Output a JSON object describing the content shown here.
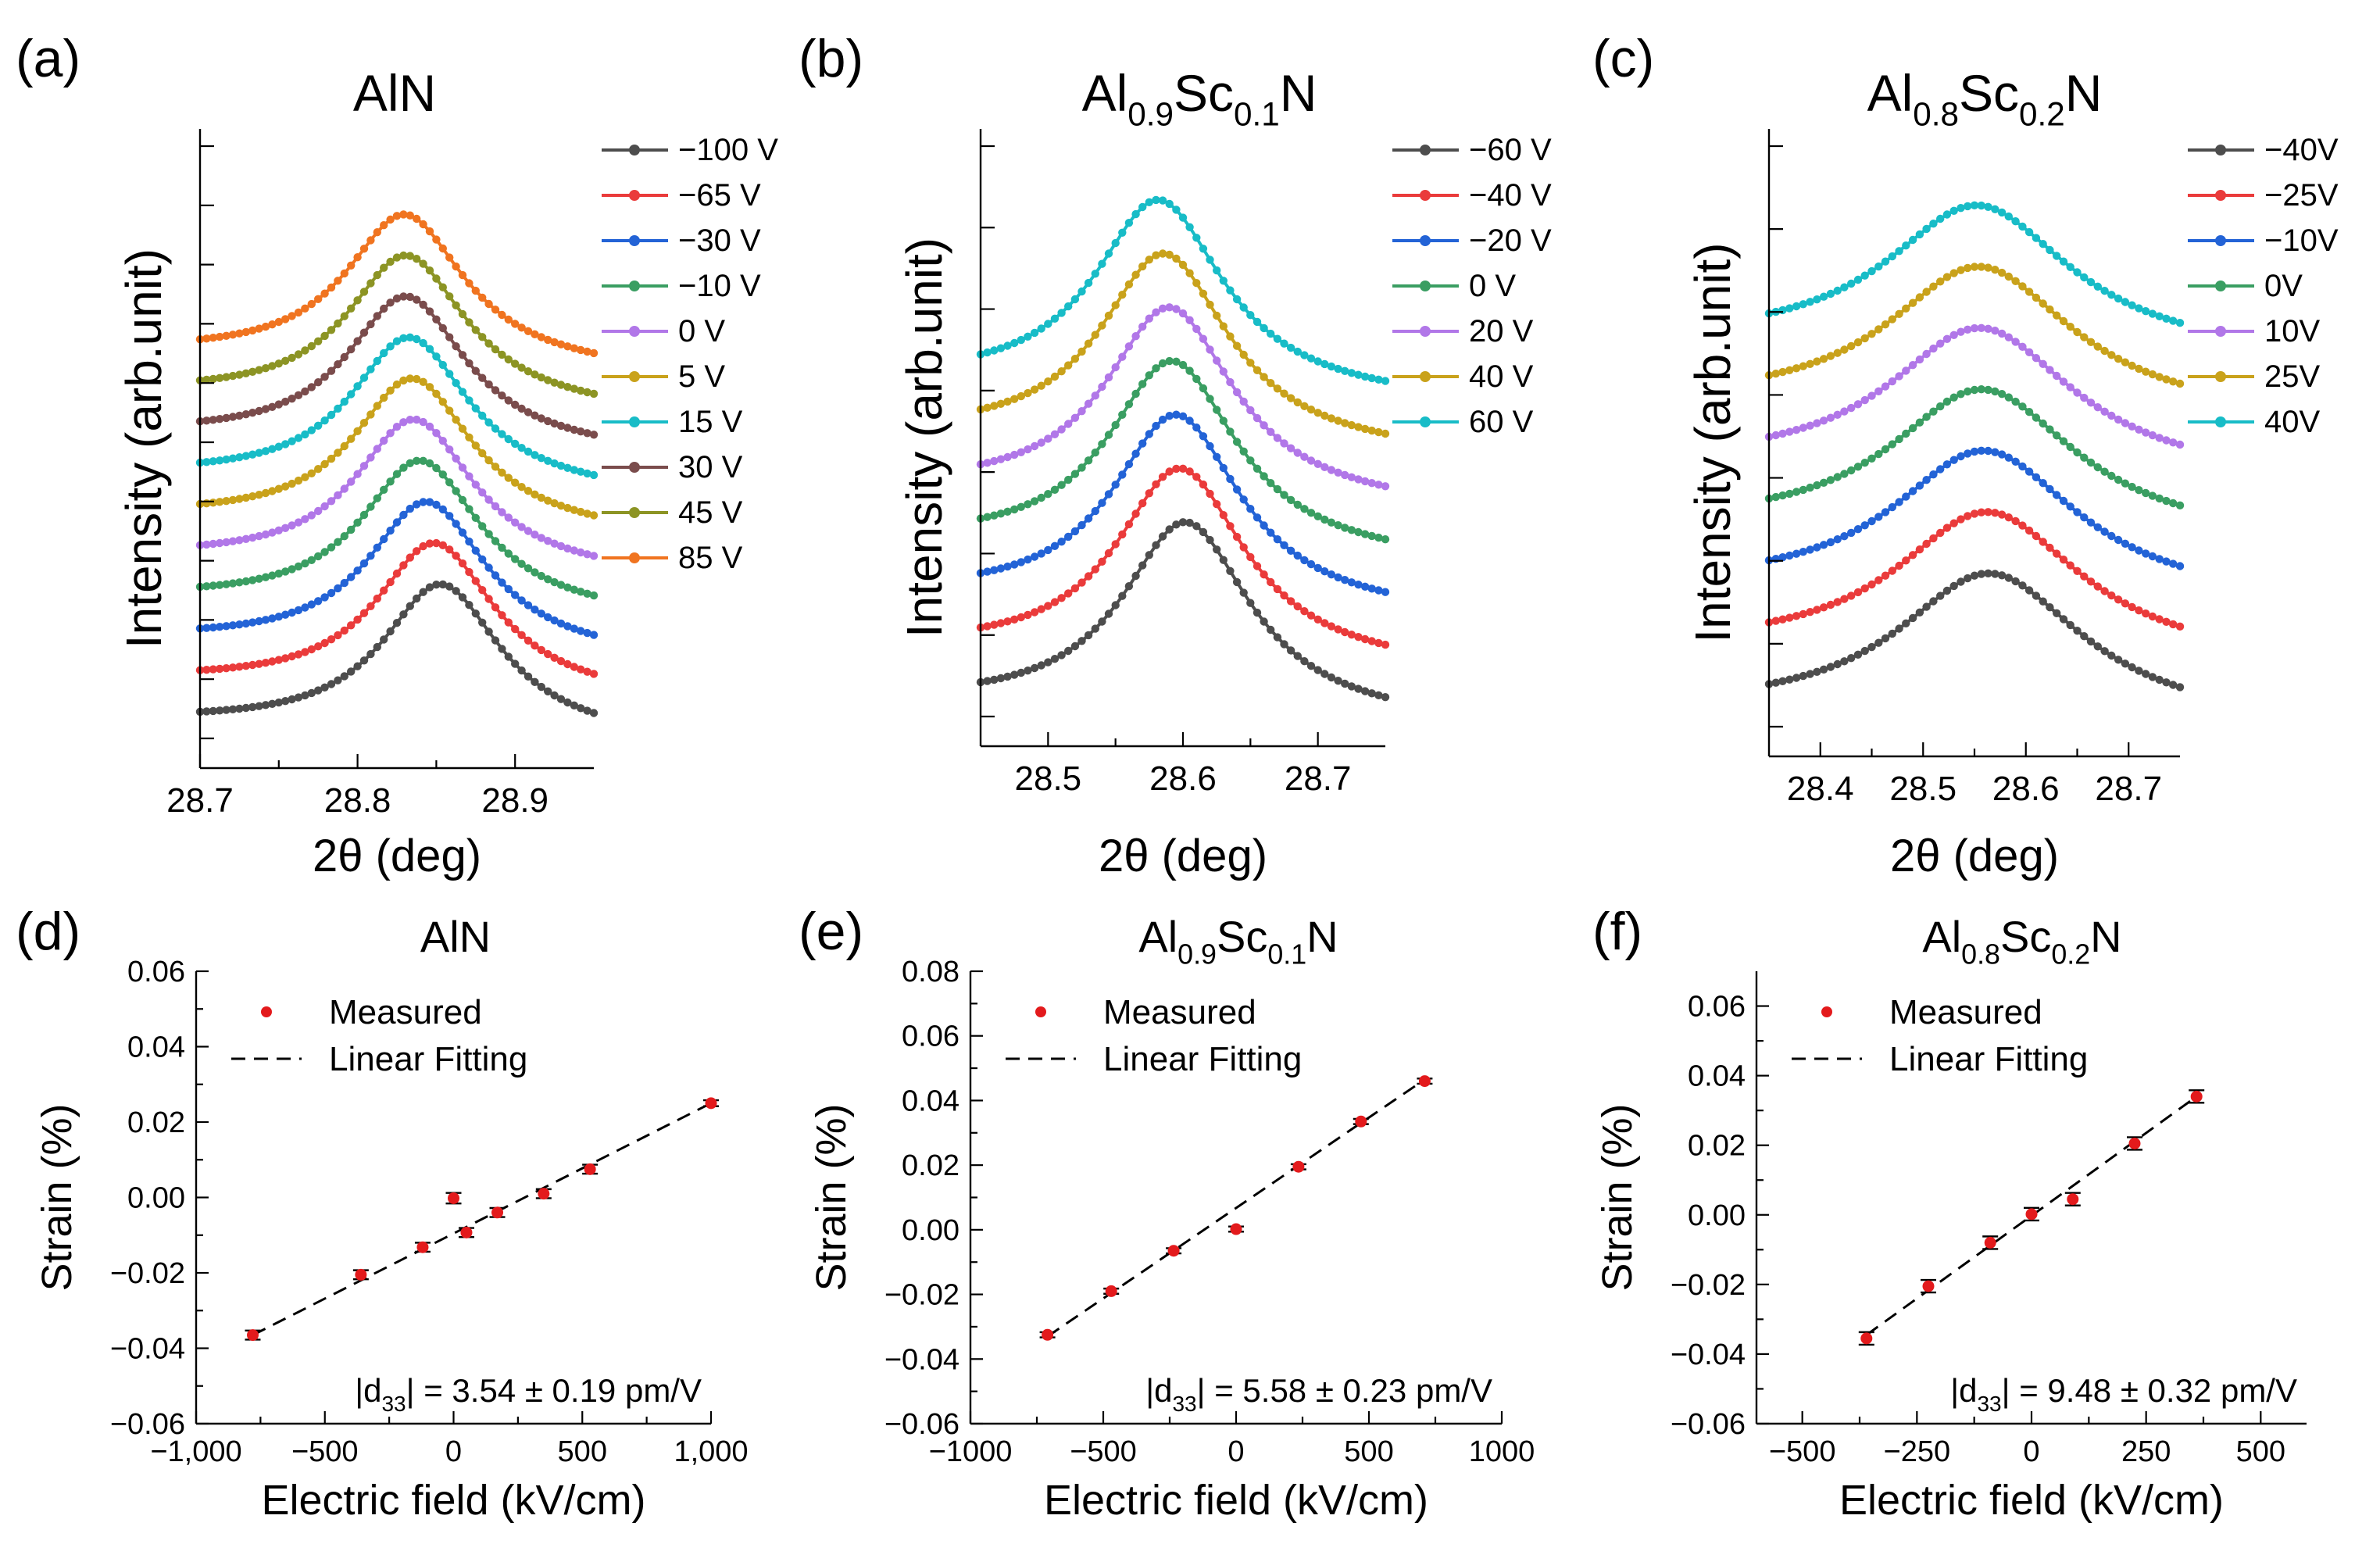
{
  "figure": {
    "xrd_common_ylabel": "Intensity (arb.unit)",
    "strain_common": {
      "xlabel": "Electric field (kV/cm)",
      "ylabel": "Strain (%)",
      "legend_measured": "Measured",
      "legend_fit": "Linear Fitting"
    }
  },
  "colors": {
    "series": [
      "#4d4d4d",
      "#ea3b3b",
      "#2363d6",
      "#3a9e62",
      "#b177e8",
      "#c9a21b",
      "#18bcc7",
      "#7a4c4c",
      "#8c9424",
      "#f07420"
    ],
    "marker": "#e31a1c",
    "errorbar": "#000000"
  },
  "chart_data": [
    {
      "panel": "(a)",
      "type": "line",
      "title": {
        "base": "AlN"
      },
      "xlabel": "2θ (deg)",
      "ylabel": "Intensity (arb.unit)",
      "xlim": [
        28.7,
        28.95
      ],
      "xticks": [
        "28.7",
        "28.8",
        "28.9"
      ],
      "xtick_values": [
        28.7,
        28.8,
        28.9
      ],
      "minor_xticks": [
        28.75,
        28.85
      ],
      "peak_model": {
        "center_shift": [
          28.853,
          28.849,
          28.844,
          28.84,
          28.836,
          28.835,
          28.833,
          28.831,
          28.831,
          28.83
        ],
        "width": 0.046,
        "baseline_offset": [
          0.3,
          0.9,
          1.5,
          2.1,
          2.7,
          3.3,
          3.9,
          4.5,
          5.1,
          5.7
        ],
        "amplitude": 2.2,
        "slope": -0.4
      },
      "series": [
        {
          "name": "−100 V",
          "peak": 28.853
        },
        {
          "name": "−65 V",
          "peak": 28.849
        },
        {
          "name": "−30 V",
          "peak": 28.844
        },
        {
          "name": "−10 V",
          "peak": 28.84
        },
        {
          "name": "0 V",
          "peak": 28.836
        },
        {
          "name": "5 V",
          "peak": 28.835
        },
        {
          "name": "15 V",
          "peak": 28.833
        },
        {
          "name": "30 V",
          "peak": 28.831
        },
        {
          "name": "45 V",
          "peak": 28.831
        },
        {
          "name": "85 V",
          "peak": 28.83
        }
      ]
    },
    {
      "panel": "(b)",
      "type": "line",
      "title": {
        "base": "Al",
        "sub1": "0.9",
        "mid": "Sc",
        "sub2": "0.1",
        "tail": "N"
      },
      "xlabel": "2θ (deg)",
      "ylabel": "Intensity (arb.unit)",
      "xlim": [
        28.45,
        28.75
      ],
      "xticks": [
        "28.5",
        "28.6",
        "28.7"
      ],
      "xtick_values": [
        28.5,
        28.6,
        28.7
      ],
      "minor_xticks": [
        28.55,
        28.65
      ],
      "peak_model": {
        "width": 0.058,
        "baseline_offset": [
          0.3,
          1.3,
          2.3,
          3.3,
          4.3,
          5.3,
          6.3
        ],
        "amplitude": 3.6,
        "slope": -0.5
      },
      "series": [
        {
          "name": "−60 V",
          "peak": 28.602
        },
        {
          "name": "−40 V",
          "peak": 28.598
        },
        {
          "name": "−20 V",
          "peak": 28.595
        },
        {
          "name": "0 V",
          "peak": 28.592
        },
        {
          "name": "20 V",
          "peak": 28.59
        },
        {
          "name": "40 V",
          "peak": 28.586
        },
        {
          "name": "60 V",
          "peak": 28.582
        }
      ]
    },
    {
      "panel": "(c)",
      "type": "line",
      "title": {
        "base": "Al",
        "sub1": "0.8",
        "mid": "Sc",
        "sub2": "0.2",
        "tail": "N"
      },
      "xlabel": "2θ (deg)",
      "ylabel": "Intensity (arb.unit)",
      "xlim": [
        28.35,
        28.75
      ],
      "xticks": [
        "28.4",
        "28.5",
        "28.6",
        "28.7"
      ],
      "xtick_values": [
        28.4,
        28.5,
        28.6,
        28.7
      ],
      "minor_xticks": [
        28.45,
        28.55,
        28.65
      ],
      "peak_model": {
        "width": 0.11,
        "baseline_offset": [
          0.3,
          1.3,
          2.3,
          3.3,
          4.3,
          5.3,
          6.3
        ],
        "amplitude": 2.4,
        "slope": -0.3
      },
      "series": [
        {
          "name": "−40V",
          "peak": 28.565
        },
        {
          "name": "−25V",
          "peak": 28.563
        },
        {
          "name": "−10V",
          "peak": 28.56
        },
        {
          "name": "0V",
          "peak": 28.558
        },
        {
          "name": "10V",
          "peak": 28.556
        },
        {
          "name": "25V",
          "peak": 28.555
        },
        {
          "name": "40V",
          "peak": 28.553
        }
      ]
    },
    {
      "panel": "(d)",
      "type": "scatter",
      "title": {
        "base": "AlN"
      },
      "xlabel": "Electric field (kV/cm)",
      "ylabel": "Strain (%)",
      "xlim": [
        -1000,
        1000
      ],
      "ylim": [
        -0.06,
        0.06
      ],
      "xticks": [
        "−1,000",
        "−500",
        "0",
        "500",
        "1,000"
      ],
      "xtick_values": [
        -1000,
        -500,
        0,
        500,
        1000
      ],
      "minor_xticks": [
        -750,
        -250,
        250,
        750
      ],
      "yticks": [
        "−0.06",
        "−0.04",
        "−0.02",
        "0.00",
        "0.02",
        "0.04",
        "0.06"
      ],
      "ytick_values": [
        -0.06,
        -0.04,
        -0.02,
        0.0,
        0.02,
        0.04,
        0.06
      ],
      "points": [
        {
          "x": -780,
          "y": -0.0365,
          "err": 0.0012
        },
        {
          "x": -360,
          "y": -0.0205,
          "err": 0.0012
        },
        {
          "x": -120,
          "y": -0.0132,
          "err": 0.0012
        },
        {
          "x": 0,
          "y": -0.0002,
          "err": 0.0014
        },
        {
          "x": 50,
          "y": -0.0093,
          "err": 0.0012
        },
        {
          "x": 170,
          "y": -0.004,
          "err": 0.0012
        },
        {
          "x": 350,
          "y": 0.001,
          "err": 0.0012
        },
        {
          "x": 530,
          "y": 0.0075,
          "err": 0.0012
        },
        {
          "x": 1000,
          "y": 0.025,
          "err": 0.0008
        }
      ],
      "fit": {
        "x": [
          -780,
          1000
        ],
        "y": [
          -0.0365,
          0.025
        ]
      },
      "annotation": {
        "prefix": "|d",
        "sub": "33",
        "text": "| = 3.54 ± 0.19 pm/V"
      }
    },
    {
      "panel": "(e)",
      "type": "scatter",
      "title": {
        "base": "Al",
        "sub1": "0.9",
        "mid": "Sc",
        "sub2": "0.1",
        "tail": "N"
      },
      "xlabel": "Electric field (kV/cm)",
      "ylabel": "Strain (%)",
      "xlim": [
        -1000,
        1000
      ],
      "ylim": [
        -0.06,
        0.08
      ],
      "xticks": [
        "−1000",
        "−500",
        "0",
        "500",
        "1000"
      ],
      "xtick_values": [
        -1000,
        -500,
        0,
        500,
        1000
      ],
      "minor_xticks": [
        -750,
        -250,
        250,
        750
      ],
      "yticks": [
        "−0.06",
        "−0.04",
        "−0.02",
        "0.00",
        "0.02",
        "0.04",
        "0.06",
        "0.08"
      ],
      "ytick_values": [
        -0.06,
        -0.04,
        -0.02,
        0.0,
        0.02,
        0.04,
        0.06,
        0.08
      ],
      "points": [
        {
          "x": -710,
          "y": -0.0325,
          "err": 0.0008
        },
        {
          "x": -470,
          "y": -0.019,
          "err": 0.0008
        },
        {
          "x": -235,
          "y": -0.0065,
          "err": 0.0008
        },
        {
          "x": 0,
          "y": 0.0002,
          "err": 0.0008
        },
        {
          "x": 235,
          "y": 0.0195,
          "err": 0.0008
        },
        {
          "x": 470,
          "y": 0.0335,
          "err": 0.0008
        },
        {
          "x": 710,
          "y": 0.046,
          "err": 0.0008
        }
      ],
      "fit": {
        "x": [
          -710,
          710
        ],
        "y": [
          -0.033,
          0.0465
        ]
      },
      "annotation": {
        "prefix": "|d",
        "sub": "33",
        "text": "| = 5.58 ± 0.23 pm/V"
      }
    },
    {
      "panel": "(f)",
      "type": "scatter",
      "title": {
        "base": "Al",
        "sub1": "0.8",
        "mid": "Sc",
        "sub2": "0.2",
        "tail": "N"
      },
      "xlabel": "Electric field (kV/cm)",
      "ylabel": "Strain (%)",
      "xlim": [
        -600,
        600
      ],
      "ylim": [
        -0.06,
        0.07
      ],
      "xticks": [
        "−500",
        "−250",
        "0",
        "250",
        "500"
      ],
      "xtick_values": [
        -500,
        -250,
        0,
        250,
        500
      ],
      "minor_xticks": [
        -375,
        -125,
        125,
        375
      ],
      "yticks": [
        "−0.06",
        "−0.04",
        "−0.02",
        "0.00",
        "0.02",
        "0.04",
        "0.06"
      ],
      "ytick_values": [
        -0.06,
        -0.04,
        -0.02,
        0.0,
        0.02,
        0.04,
        0.06
      ],
      "points": [
        {
          "x": -360,
          "y": -0.0355,
          "err": 0.0018
        },
        {
          "x": -225,
          "y": -0.0205,
          "err": 0.0018
        },
        {
          "x": -90,
          "y": -0.008,
          "err": 0.0018
        },
        {
          "x": 0,
          "y": 0.0002,
          "err": 0.0018
        },
        {
          "x": 90,
          "y": 0.0045,
          "err": 0.0018
        },
        {
          "x": 225,
          "y": 0.0205,
          "err": 0.0018
        },
        {
          "x": 360,
          "y": 0.034,
          "err": 0.0018
        }
      ],
      "fit": {
        "x": [
          -360,
          360
        ],
        "y": [
          -0.0345,
          0.034
        ]
      },
      "annotation": {
        "prefix": "|d",
        "sub": "33",
        "text": "| = 9.48 ± 0.32 pm/V"
      }
    }
  ]
}
